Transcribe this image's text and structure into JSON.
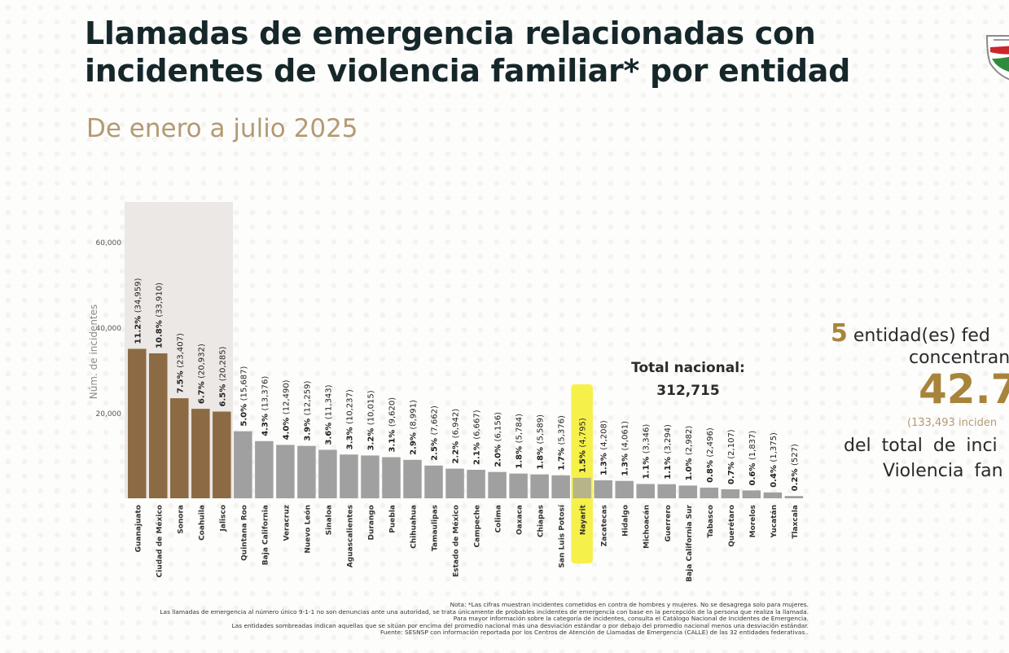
{
  "header": {
    "title_line1": "Llamadas de emergencia relacionadas  con",
    "title_line2": "incidentes de violencia familiar* por entidad",
    "subtitle": "De enero a julio 2025",
    "logo_icon": "shield-logo-icon"
  },
  "colors": {
    "highlight_bar": "#8c6a43",
    "regular_bar": "#a0a0a0",
    "shade_band": "#ebe8e5",
    "marker_yellow": "#f5ef2a",
    "accent_gold": "#a8843a",
    "subtitle_gold": "#b39a72"
  },
  "chart_data": {
    "type": "bar",
    "title": "Llamadas de emergencia relacionadas con incidentes de violencia familiar* por entidad",
    "subtitle": "De enero a julio 2025",
    "xlabel": "",
    "ylabel": "Núm. de incidentes",
    "ylim": [
      0,
      60000
    ],
    "yticks": [
      20000,
      40000,
      60000
    ],
    "ytick_labels": [
      "20,000",
      "40,000",
      "60,000"
    ],
    "grid": false,
    "categories": [
      "Guanajuato",
      "Ciudad de México",
      "Sonora",
      "Coahuila",
      "Jalisco",
      "Quintana Roo",
      "Baja California",
      "Veracruz",
      "Nuevo León",
      "Sinaloa",
      "Aguascalientes",
      "Durango",
      "Puebla",
      "Chihuahua",
      "Tamaulipas",
      "Estado de México",
      "Campeche",
      "Colima",
      "Oaxaca",
      "Chiapas",
      "San Luis Potosí",
      "Nayarit",
      "Zacatecas",
      "Hidalgo",
      "Michoacán",
      "Guerrero",
      "Baja California Sur",
      "Tabasco",
      "Querétaro",
      "Morelos",
      "Yucatán",
      "Tlaxcala"
    ],
    "values": [
      34959,
      33910,
      23407,
      20932,
      20285,
      15687,
      13376,
      12490,
      12259,
      11343,
      10237,
      10015,
      9620,
      8991,
      7662,
      6942,
      6667,
      6156,
      5784,
      5589,
      5376,
      4795,
      4208,
      4061,
      3346,
      3294,
      2982,
      2496,
      2107,
      1837,
      1375,
      527
    ],
    "percent_labels": [
      "11.2%",
      "10.8%",
      "7.5%",
      "6.7%",
      "6.5%",
      "5.0%",
      "4.3%",
      "4.0%",
      "3.9%",
      "3.6%",
      "3.3%",
      "3.2%",
      "3.1%",
      "2.9%",
      "2.5%",
      "2.2%",
      "2.1%",
      "2.0%",
      "1.8%",
      "1.8%",
      "1.7%",
      "1.5%",
      "1.3%",
      "1.3%",
      "1.1%",
      "1.1%",
      "1.0%",
      "0.8%",
      "0.7%",
      "0.6%",
      "0.4%",
      "0.2%"
    ],
    "count_labels": [
      "(34,959)",
      "(33,910)",
      "(23,407)",
      "(20,932)",
      "(20,285)",
      "(15,687)",
      "(13,376)",
      "(12,490)",
      "(12,259)",
      "(11,343)",
      "(10,237)",
      "(10,015)",
      "(9,620)",
      "(8,991)",
      "(7,662)",
      "(6,942)",
      "(6,667)",
      "(6,156)",
      "(5,784)",
      "(5,589)",
      "(5,376)",
      "(4,795)",
      "(4,208)",
      "(4,061)",
      "(3,346)",
      "(3,294)",
      "(2,982)",
      "(2,496)",
      "(2,107)",
      "(1,837)",
      "(1,375)",
      "(527)"
    ],
    "shaded_categories": [
      "Guanajuato",
      "Ciudad de México",
      "Sonora",
      "Coahuila",
      "Jalisco"
    ],
    "marked_category": "Nayarit",
    "annotations": [
      "Total nacional:",
      "312,715"
    ],
    "legend": "none"
  },
  "total": {
    "label": "Total nacional:",
    "value": "312,715"
  },
  "summary": {
    "count": "5",
    "line1_rest": " entidad(es)  fed",
    "line2": "concentran",
    "percent": "42.7",
    "incidents": "(133,493  inciden",
    "line3": "del total  de inci",
    "line4": "Violencia  fan"
  },
  "notes": [
    "Nota: *Las cifras muestran incidentes cometidos en contra de hombres y mujeres. No se desagrega solo para mujeres.",
    "Las llamadas de emergencia al número único 9-1-1 no son denuncias ante una autoridad, se trata únicamente de probables incidentes de emergencia con base en la percepción de la persona que realiza la llamada.",
    "Para mayor información sobre la categoría de incidentes, consulta el Catálogo Nacional de Incidentes de Emergencia.",
    "Las entidades sombreadas indican aquellas que se sitúan por encima del promedio nacional más una desviación estándar o por debajo del promedio nacional menos una desviación estándar.",
    "Fuente: SESNSP con información reportada por los Centros de Atención de Llamadas de Emergencia (CALLE) de las 32 entidades federativas.."
  ]
}
